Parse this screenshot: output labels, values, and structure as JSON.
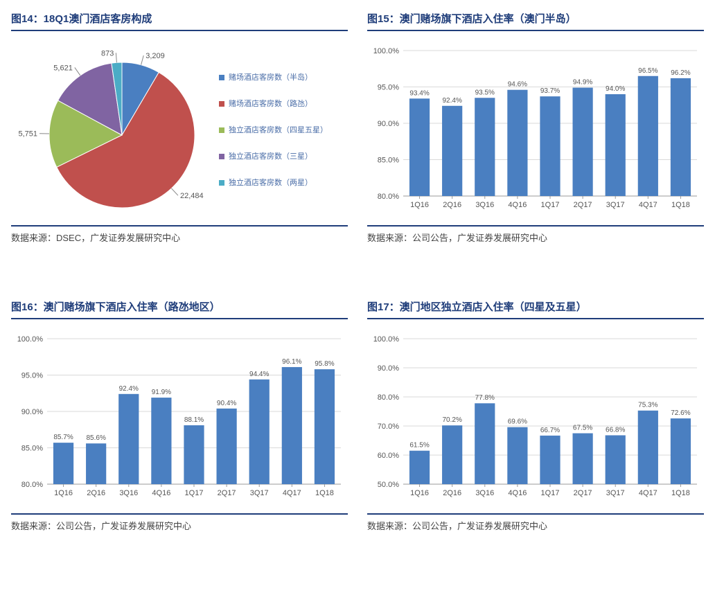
{
  "panels": {
    "p14": {
      "title": "图14：18Q1澳门酒店客房构成",
      "source": "数据来源：DSEC，广发证券发展研究中心",
      "pie": {
        "slices": [
          {
            "label": "赌场酒店客房数（半岛）",
            "value": 3209,
            "display": "3,209",
            "color": "#4a7fc1"
          },
          {
            "label": "赌场酒店客房数（路氹）",
            "value": 22484,
            "display": "22,484",
            "color": "#c0504d"
          },
          {
            "label": "独立酒店客房数（四星五星）",
            "value": 5751,
            "display": "5,751",
            "color": "#9bbb59"
          },
          {
            "label": "独立酒店客房数（三星）",
            "value": 5621,
            "display": "5,621",
            "color": "#8064a2"
          },
          {
            "label": "独立酒店客房数（两星）",
            "value": 873,
            "display": "873",
            "color": "#4bacc6"
          }
        ]
      }
    },
    "p15": {
      "title": "图15：澳门赌场旗下酒店入住率（澳门半岛）",
      "source": "数据来源：公司公告，广发证券发展研究中心",
      "bar": {
        "categories": [
          "1Q16",
          "2Q16",
          "3Q16",
          "4Q16",
          "1Q17",
          "2Q17",
          "3Q17",
          "4Q17",
          "1Q18"
        ],
        "values": [
          93.4,
          92.4,
          93.5,
          94.6,
          93.7,
          94.9,
          94.0,
          96.5,
          96.2
        ],
        "labels": [
          "93.4%",
          "92.4%",
          "93.5%",
          "94.6%",
          "93.7%",
          "94.9%",
          "94.0%",
          "96.5%",
          "96.2%"
        ],
        "ymin": 80,
        "ymax": 100,
        "ystep": 5,
        "bar_color": "#4a7fc1",
        "bg": "#ffffff"
      }
    },
    "p16": {
      "title": "图16：澳门赌场旗下酒店入住率（路氹地区）",
      "source": "数据来源：公司公告，广发证券发展研究中心",
      "bar": {
        "categories": [
          "1Q16",
          "2Q16",
          "3Q16",
          "4Q16",
          "1Q17",
          "2Q17",
          "3Q17",
          "4Q17",
          "1Q18"
        ],
        "values": [
          85.7,
          85.6,
          92.4,
          91.9,
          88.1,
          90.4,
          94.4,
          96.1,
          95.8
        ],
        "labels": [
          "85.7%",
          "85.6%",
          "92.4%",
          "91.9%",
          "88.1%",
          "90.4%",
          "94.4%",
          "96.1%",
          "95.8%"
        ],
        "ymin": 80,
        "ymax": 100,
        "ystep": 5,
        "bar_color": "#4a7fc1",
        "bg": "#ffffff"
      }
    },
    "p17": {
      "title": "图17：澳门地区独立酒店入住率（四星及五星）",
      "source": "数据来源：公司公告，广发证券发展研究中心",
      "bar": {
        "categories": [
          "1Q16",
          "2Q16",
          "3Q16",
          "4Q16",
          "1Q17",
          "2Q17",
          "3Q17",
          "4Q17",
          "1Q18"
        ],
        "values": [
          61.5,
          70.2,
          77.8,
          69.6,
          66.7,
          67.5,
          66.8,
          75.3,
          72.6
        ],
        "labels": [
          "61.5%",
          "70.2%",
          "77.8%",
          "69.6%",
          "66.7%",
          "67.5%",
          "66.8%",
          "75.3%",
          "72.6%"
        ],
        "ymin": 50,
        "ymax": 100,
        "ystep": 10,
        "bar_color": "#4a7fc1",
        "bg": "#ffffff"
      }
    }
  },
  "chart_style": {
    "axis_fontsize": 11,
    "label_fontsize": 10,
    "grid_color": "#d9d9d9",
    "text_color": "#555555"
  }
}
